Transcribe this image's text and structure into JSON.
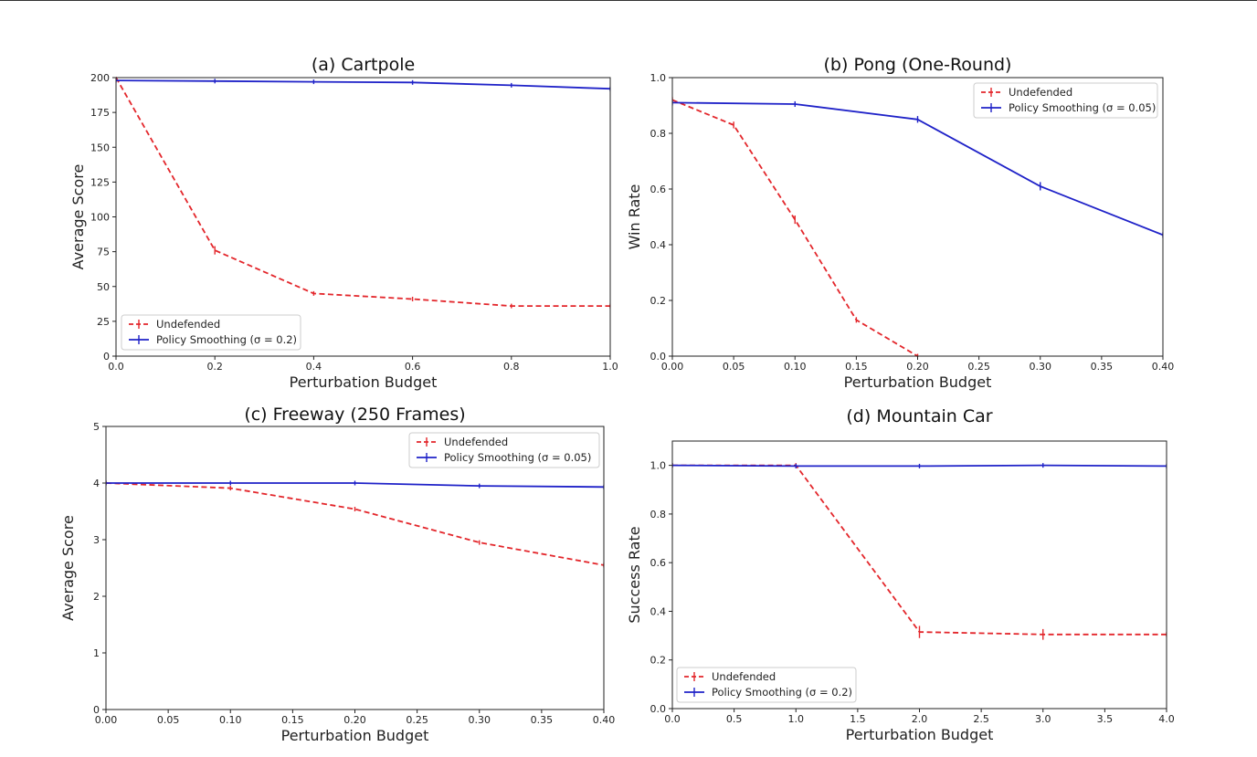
{
  "chart_data": [
    {
      "type": "line",
      "title": "(a) Cartpole",
      "xlabel": "Perturbation Budget",
      "ylabel": "Average Score",
      "xlim": [
        0,
        1.0
      ],
      "ylim": [
        0,
        200
      ],
      "xticks": [
        0,
        0.2,
        0.4,
        0.6,
        0.8,
        1.0
      ],
      "xtick_labels": [
        "0.0",
        "0.2",
        "0.4",
        "0.6",
        "0.8",
        "1.0"
      ],
      "yticks": [
        0,
        25,
        50,
        75,
        100,
        125,
        150,
        175,
        200
      ],
      "ytick_labels": [
        "0",
        "25",
        "50",
        "75",
        "100",
        "125",
        "150",
        "175",
        "200"
      ],
      "legend_position": "lower-left",
      "series": [
        {
          "name": "Undefended",
          "color": "#e3262b",
          "style": "dashed",
          "x": [
            0,
            0.2,
            0.4,
            0.6,
            0.8,
            1.0
          ],
          "y": [
            200,
            76,
            45,
            41,
            36,
            36
          ],
          "err": [
            0,
            3,
            1.5,
            1.5,
            0.8,
            0.8
          ]
        },
        {
          "name": "Policy Smoothing (σ = 0.2)",
          "color": "#1f22c8",
          "style": "solid",
          "x": [
            0,
            0.2,
            0.4,
            0.6,
            0.8,
            1.0
          ],
          "y": [
            198,
            197.5,
            197,
            196.5,
            194.5,
            192
          ],
          "err": [
            0,
            0,
            0,
            0,
            0,
            0
          ]
        }
      ]
    },
    {
      "type": "line",
      "title": "(b) Pong (One-Round)",
      "xlabel": "Perturbation Budget",
      "ylabel": "Win Rate",
      "xlim": [
        0,
        0.4
      ],
      "ylim": [
        0,
        1.0
      ],
      "xticks": [
        0,
        0.05,
        0.1,
        0.15,
        0.2,
        0.25,
        0.3,
        0.35,
        0.4
      ],
      "xtick_labels": [
        "0.00",
        "0.05",
        "0.10",
        "0.15",
        "0.20",
        "0.25",
        "0.30",
        "0.35",
        "0.40"
      ],
      "yticks": [
        0,
        0.2,
        0.4,
        0.6,
        0.8,
        1.0
      ],
      "ytick_labels": [
        "0.0",
        "0.2",
        "0.4",
        "0.6",
        "0.8",
        "1.0"
      ],
      "legend_position": "top-right",
      "series": [
        {
          "name": "Undefended",
          "color": "#e3262b",
          "style": "dashed",
          "x": [
            0,
            0.05,
            0.1,
            0.15,
            0.2
          ],
          "y": [
            0.92,
            0.83,
            0.49,
            0.13,
            0.0
          ],
          "err": [
            0.01,
            0.012,
            0.015,
            0.01,
            0.003
          ]
        },
        {
          "name": "Policy Smoothing (σ = 0.05)",
          "color": "#1f22c8",
          "style": "solid",
          "x": [
            0,
            0.1,
            0.2,
            0.3,
            0.4
          ],
          "y": [
            0.91,
            0.905,
            0.85,
            0.61,
            0.435
          ],
          "err": [
            0.01,
            0.01,
            0.012,
            0.015,
            0.01
          ]
        }
      ]
    },
    {
      "type": "line",
      "title": "(c) Freeway (250 Frames)",
      "xlabel": "Perturbation Budget",
      "ylabel": "Average Score",
      "xlim": [
        0,
        0.4
      ],
      "ylim": [
        0,
        5
      ],
      "xticks": [
        0,
        0.05,
        0.1,
        0.15,
        0.2,
        0.25,
        0.3,
        0.35,
        0.4
      ],
      "xtick_labels": [
        "0.00",
        "0.05",
        "0.10",
        "0.15",
        "0.20",
        "0.25",
        "0.30",
        "0.35",
        "0.40"
      ],
      "yticks": [
        0,
        1,
        2,
        3,
        4,
        5
      ],
      "ytick_labels": [
        "0",
        "1",
        "2",
        "3",
        "4",
        "5"
      ],
      "legend_position": "top-right",
      "series": [
        {
          "name": "Undefended",
          "color": "#e3262b",
          "style": "dashed",
          "x": [
            0,
            0.1,
            0.2,
            0.3,
            0.4
          ],
          "y": [
            4.0,
            3.91,
            3.54,
            2.95,
            2.55
          ],
          "err": [
            0,
            0,
            0,
            0,
            0
          ]
        },
        {
          "name": "Policy Smoothing (σ = 0.05)",
          "color": "#1f22c8",
          "style": "solid",
          "x": [
            0,
            0.1,
            0.2,
            0.3,
            0.4
          ],
          "y": [
            4.0,
            4.0,
            4.0,
            3.95,
            3.93
          ],
          "err": [
            0,
            0,
            0,
            0,
            0
          ]
        }
      ]
    },
    {
      "type": "line",
      "title": "(d) Mountain Car",
      "xlabel": "Perturbation Budget",
      "ylabel": "Success Rate",
      "xlim": [
        0,
        4.0
      ],
      "ylim": [
        0,
        1.1
      ],
      "xticks": [
        0,
        0.5,
        1.0,
        1.5,
        2.0,
        2.5,
        3.0,
        3.5,
        4.0
      ],
      "xtick_labels": [
        "0.0",
        "0.5",
        "1.0",
        "1.5",
        "2.0",
        "2.5",
        "3.0",
        "3.5",
        "4.0"
      ],
      "yticks": [
        0,
        0.2,
        0.4,
        0.6,
        0.8,
        1.0
      ],
      "ytick_labels": [
        "0.0",
        "0.2",
        "0.4",
        "0.6",
        "0.8",
        "1.0"
      ],
      "legend_position": "lower-left",
      "series": [
        {
          "name": "Undefended",
          "color": "#e3262b",
          "style": "dashed",
          "x": [
            0,
            1.0,
            2.0,
            3.0,
            4.0
          ],
          "y": [
            1.0,
            1.0,
            0.315,
            0.305,
            0.305
          ],
          "err": [
            0,
            0.003,
            0.025,
            0.022,
            0.01
          ]
        },
        {
          "name": "Policy Smoothing (σ = 0.2)",
          "color": "#1f22c8",
          "style": "solid",
          "x": [
            0,
            1.0,
            2.0,
            3.0,
            4.0
          ],
          "y": [
            1.0,
            0.997,
            0.997,
            1.0,
            0.997
          ],
          "err": [
            0,
            0,
            0,
            0,
            0
          ]
        }
      ]
    }
  ]
}
